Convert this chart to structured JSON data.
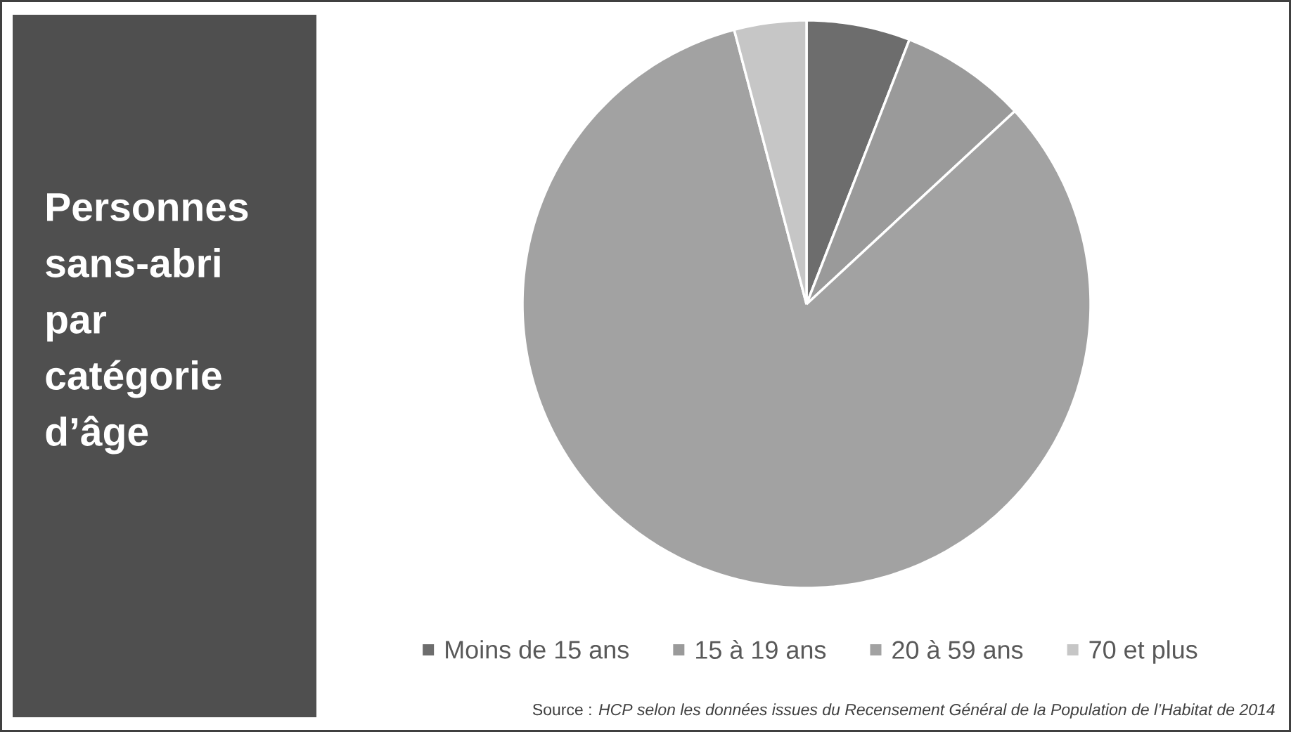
{
  "chart_data": {
    "type": "pie",
    "title": "Personnes sans-abri par catégorie d’âge",
    "categories": [
      "Moins de 15 ans",
      "15 à 19 ans",
      "20 à 59 ans",
      "70 et plus"
    ],
    "values": [
      5.9,
      7.2,
      82.8,
      4.1
    ],
    "colors": [
      "#6d6d6d",
      "#9a9a9a",
      "#a2a2a2",
      "#c6c6c6"
    ],
    "legend": "bottom",
    "annotations": [
      "Source : *HCP selon les données issues du Recensement Général de la Population de l’Habitat de 2014*"
    ]
  }
}
